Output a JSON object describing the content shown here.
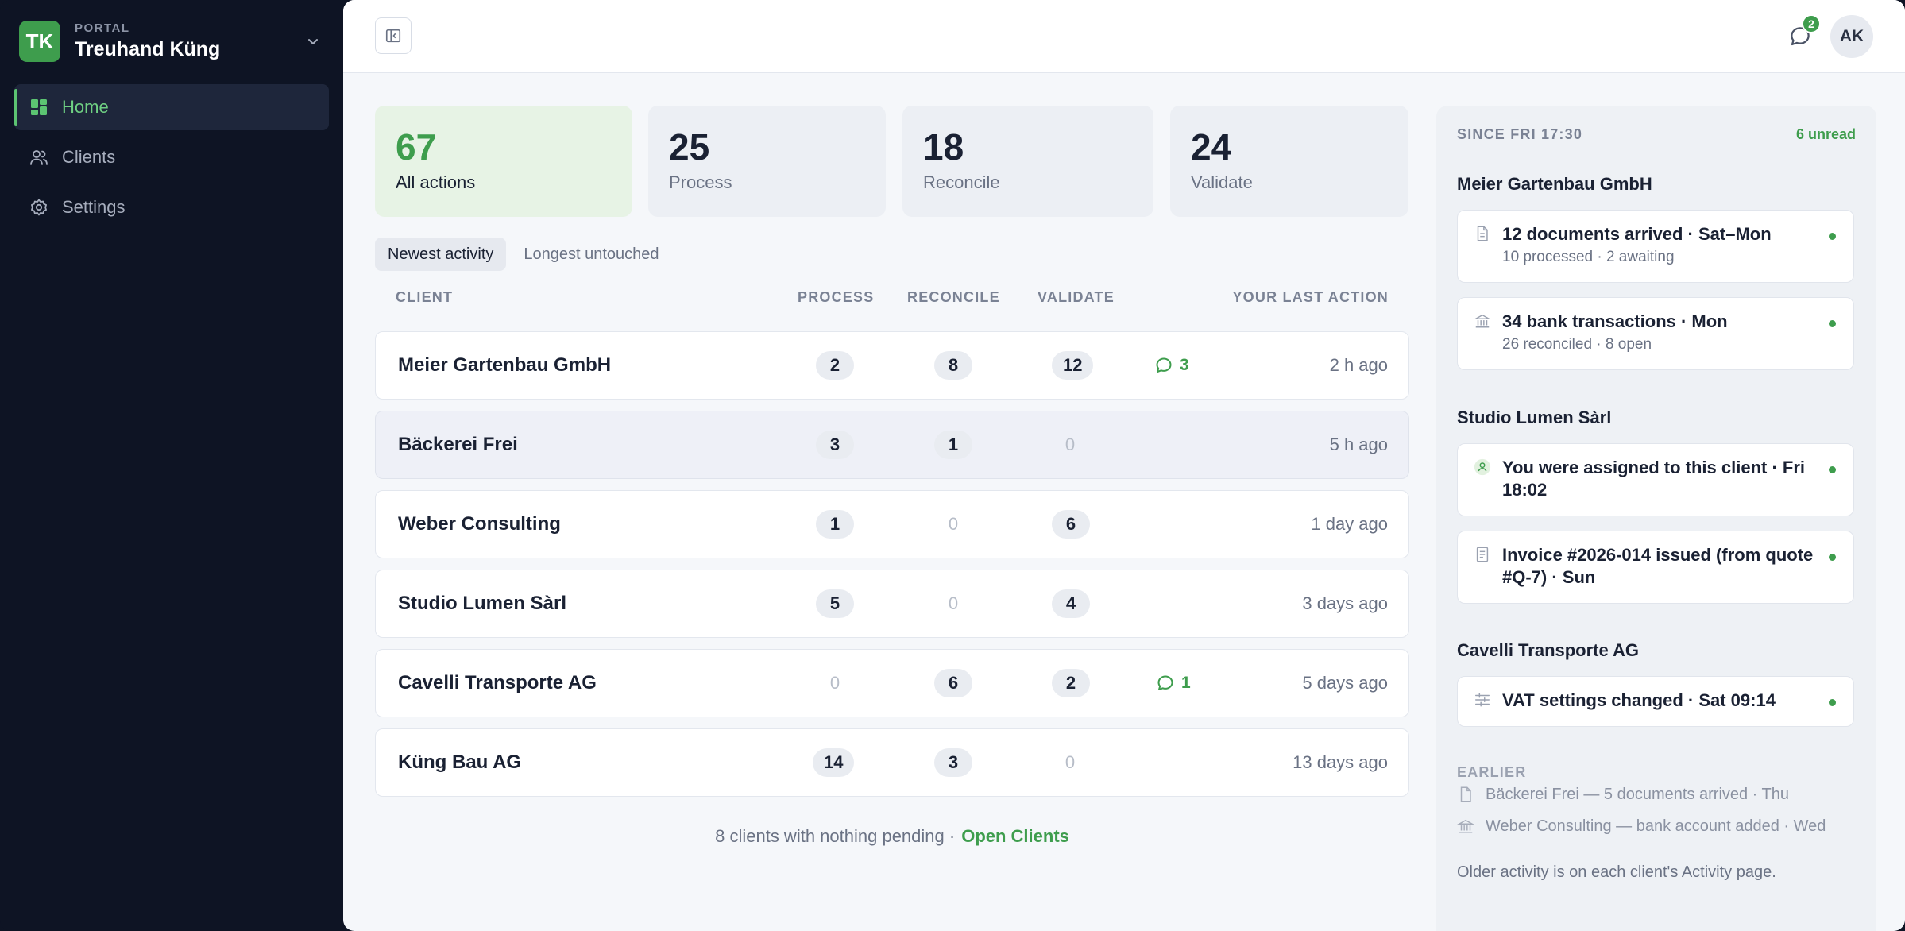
{
  "org": {
    "kicker": "PORTAL",
    "name": "Treuhand Küng",
    "logo": "TK"
  },
  "nav": [
    {
      "label": "Home",
      "icon": "dashboard-icon",
      "active": true
    },
    {
      "label": "Clients",
      "icon": "users-icon",
      "active": false
    },
    {
      "label": "Settings",
      "icon": "gear-icon",
      "active": false
    }
  ],
  "topbar": {
    "message_count": "2",
    "avatar": "AK"
  },
  "stats": [
    {
      "value": "67",
      "label": "All actions"
    },
    {
      "value": "25",
      "label": "Process"
    },
    {
      "value": "18",
      "label": "Reconcile"
    },
    {
      "value": "24",
      "label": "Validate"
    }
  ],
  "tabs": [
    {
      "label": "Newest activity"
    },
    {
      "label": "Longest untouched"
    }
  ],
  "table": {
    "headers": {
      "client": "CLIENT",
      "process": "PROCESS",
      "reconcile": "RECONCILE",
      "validate": "VALIDATE",
      "last_action": "YOUR LAST ACTION"
    },
    "rows": [
      {
        "client": "Meier Gartenbau GmbH",
        "process": "2",
        "reconcile": "8",
        "validate": "12",
        "comments": "3",
        "last": "2 h ago"
      },
      {
        "client": "Bäckerei Frei",
        "process": "3",
        "reconcile": "1",
        "validate": "0",
        "comments": "",
        "last": "5 h ago"
      },
      {
        "client": "Weber Consulting",
        "process": "1",
        "reconcile": "0",
        "validate": "6",
        "comments": "",
        "last": "1 day ago"
      },
      {
        "client": "Studio Lumen Sàrl",
        "process": "5",
        "reconcile": "0",
        "validate": "4",
        "comments": "",
        "last": "3 days ago"
      },
      {
        "client": "Cavelli Transporte AG",
        "process": "0",
        "reconcile": "6",
        "validate": "2",
        "comments": "1",
        "last": "5 days ago"
      },
      {
        "client": "Küng Bau AG",
        "process": "14",
        "reconcile": "3",
        "validate": "0",
        "comments": "",
        "last": "13 days ago"
      }
    ]
  },
  "footer": {
    "note": "8 clients with nothing pending ·",
    "link": "Open Clients"
  },
  "panel": {
    "since": "SINCE FRI 17:30",
    "unread": "6 unread",
    "groups": [
      {
        "title": "Meier Gartenbau GmbH",
        "items": [
          {
            "icon": "document-icon",
            "title": "12 documents arrived · Sat–Mon",
            "sub": "10 processed · 2 awaiting"
          },
          {
            "icon": "bank-icon",
            "title": "34 bank transactions · Mon",
            "sub": "26 reconciled · 8 open"
          }
        ]
      },
      {
        "title": "Studio Lumen Sàrl",
        "items": [
          {
            "icon": "user-assigned-icon",
            "title": "You were assigned to this client · Fri 18:02",
            "sub": ""
          },
          {
            "icon": "invoice-icon",
            "title": "Invoice #2026-014 issued (from quote #Q-7) · Sun",
            "sub": ""
          }
        ]
      },
      {
        "title": "Cavelli Transporte AG",
        "items": [
          {
            "icon": "sliders-icon",
            "title": "VAT settings changed · Sat 09:14",
            "sub": ""
          }
        ]
      }
    ],
    "earlier_label": "EARLIER",
    "earlier": [
      {
        "icon": "document-icon",
        "text": "Bäckerei Frei — 5 documents arrived · Thu"
      },
      {
        "icon": "bank-icon",
        "text": "Weber Consulting — bank account added · Wed"
      }
    ],
    "older_note": "Older activity is on each client's Activity page."
  },
  "colors": {
    "accent": "#3e9d4d",
    "sidebar": "#0e1424",
    "background": "#f5f7fa"
  }
}
